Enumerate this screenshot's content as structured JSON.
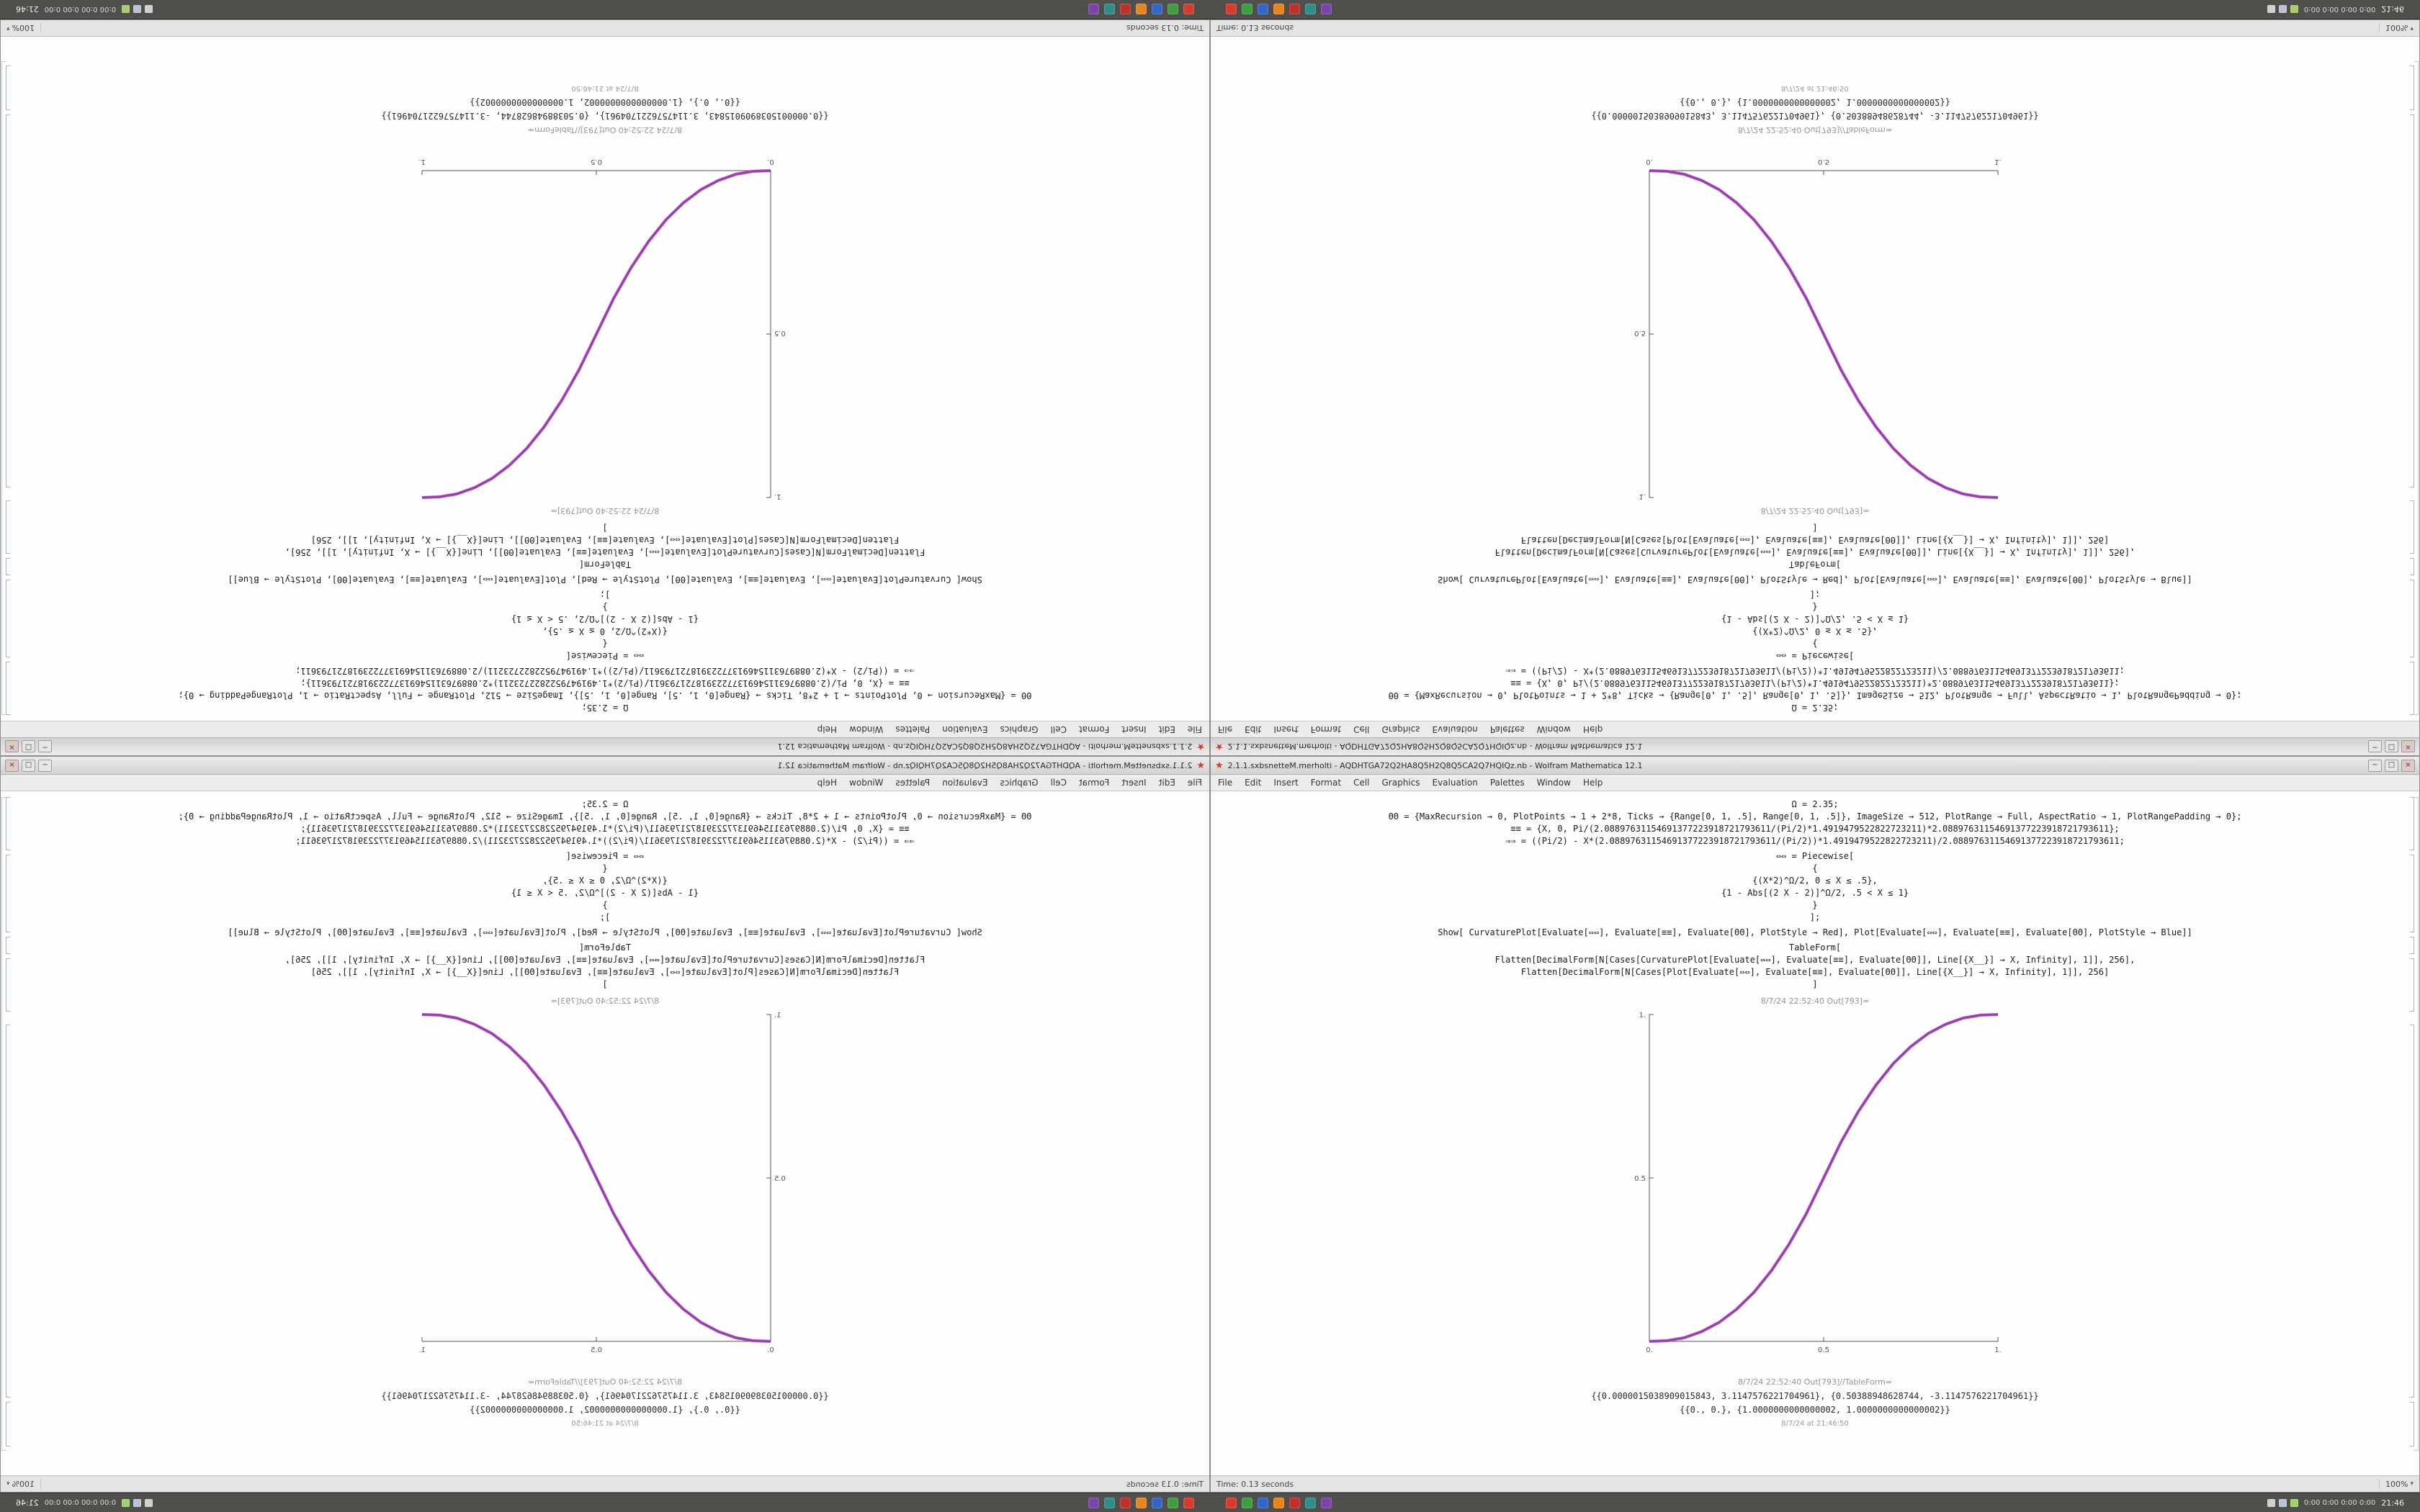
{
  "desktop": {
    "taskbar": {
      "apps": [
        {
          "name": "mathematica-spikey",
          "color": "#d83b2a"
        },
        {
          "name": "green-app",
          "color": "#3d9e3f"
        },
        {
          "name": "blue-app",
          "color": "#2f66c8"
        },
        {
          "name": "orange-app",
          "color": "#e8861e"
        },
        {
          "name": "red-app",
          "color": "#c03028"
        },
        {
          "name": "teal-app",
          "color": "#2e8f8a"
        },
        {
          "name": "purple-app",
          "color": "#7a44aa"
        }
      ],
      "tray_icons": [
        {
          "name": "network-icon",
          "color": "#cfcfcf"
        },
        {
          "name": "volume-icon",
          "color": "#b8c4d4"
        },
        {
          "name": "battery-icon",
          "color": "#9fd06a"
        }
      ],
      "tray_text": "0:00 0:00 0:00 0:00",
      "clock": "21:46"
    }
  },
  "window": {
    "title": "2.1.1.sxbsnetteM.merholti - AQDHTGA72Q2HA8Q5H2Q8Q5CA2Q7HQIQz.nb - Wolfram Mathematica 12.1",
    "controls": {
      "minimize": "−",
      "maximize": "□",
      "close": "×"
    },
    "menu": [
      "File",
      "Edit",
      "Insert",
      "Format",
      "Cell",
      "Graphics",
      "Evaluation",
      "Palettes",
      "Window",
      "Help"
    ],
    "status": {
      "left": "Time: 0.13 seconds",
      "zoom": "100%"
    },
    "cells": {
      "groups": [
        {
          "lines": [
            "Ω = 2.35;",
            "ΘΘ = {MaxRecursion → 0, PlotPoints → 1 + 2*8, Ticks → {Range[0, 1, .5], Range[0, 1, .5]}, ImageSize → 512, PlotRange → Full, AspectRatio → 1, PlotRangePadding → 0};",
            "≡≡ = {X, 0, Pi/(2.08897631154691377223918721793611/(Pi/2)*1.4919479522822723211)*2.08897631154691377223918721793611};",
            "⇒⇒ = ((Pi/2) - X*(2.08897631154691377223918721793611/(Pi/2))*1.4919479522822723211)/2.08897631154691377223918721793611;"
          ]
        },
        {
          "lines": [
            "⇔⇔ = Piecewise[",
            "{",
            "{(X*2)^Ω/2, 0 ≤ X ≤ .5},",
            "{1 - Abs[(2 X - 2)]^Ω/2, .5 < X ≤ 1}",
            "}",
            "];"
          ]
        },
        {
          "lines": [
            "Show[  CurvaturePlot[Evaluate[⇔⇔], Evaluate[≡≡], Evaluate[ΘΘ], PlotStyle → Red],  Plot[Evaluate[⇔⇔], Evaluate[≡≡], Evaluate[ΘΘ], PlotStyle → Blue]]"
          ]
        },
        {
          "lines": [
            "TableForm[",
            "Flatten[DecimalForm[N[Cases[CurvaturePlot[Evaluate[⇔⇔], Evaluate[≡≡], Evaluate[ΘΘ]], Line[{X__}] → X, Infinity], 1]], 256],",
            "Flatten[DecimalForm[N[Cases[Plot[Evaluate[⇔⇔], Evaluate[≡≡], Evaluate[ΘΘ]], Line[{X__}] → X, Infinity], 1]], 256]",
            "]"
          ]
        }
      ],
      "out_label_plot": "8/7/24 22:52:40 Out[793]=",
      "out_label_table": "8/7/24 22:52:40 Out[793]//TableForm=",
      "outputs": [
        "{{0.0000015038909015843, 3.1147576221704961}, {0.50388948628744, -3.1147576221704961}}",
        "{{0., 0.}, {1.0000000000000002, 1.0000000000000002}}"
      ],
      "footer_timestamp": "8/7/24 at 21:46:50"
    }
  },
  "chart_data": {
    "type": "line",
    "title": "",
    "xlabel": "",
    "ylabel": "",
    "xlim": [
      0,
      1
    ],
    "ylim": [
      0,
      1
    ],
    "xticks": [
      0,
      0.5,
      1
    ],
    "yticks": [
      0,
      0.5,
      1
    ],
    "xtick_labels": [
      "0.",
      "0.5",
      "1."
    ],
    "ytick_labels": [
      "0.",
      "0.5",
      "1."
    ],
    "grid": false,
    "legend": false,
    "x": [
      0,
      0.05,
      0.1,
      0.15,
      0.2,
      0.25,
      0.3,
      0.35,
      0.4,
      0.45,
      0.5,
      0.55,
      0.6,
      0.65,
      0.7,
      0.75,
      0.8,
      0.85,
      0.9,
      0.95,
      1
    ],
    "y": [
      0,
      0.002,
      0.011,
      0.03,
      0.058,
      0.098,
      0.15,
      0.216,
      0.296,
      0.39,
      0.5,
      0.61,
      0.704,
      0.784,
      0.85,
      0.902,
      0.942,
      0.97,
      0.989,
      0.998,
      1
    ],
    "series": [
      {
        "name": "CurvaturePlot",
        "plot_style": "Red",
        "color": "#c93a9a"
      },
      {
        "name": "Plot",
        "plot_style": "Blue",
        "color": "#7b43c9"
      }
    ]
  },
  "quadrants": [
    {
      "position": "top-left",
      "orientation": "rotated-180"
    },
    {
      "position": "top-right",
      "orientation": "flipped-vertical"
    },
    {
      "position": "bottom-left",
      "orientation": "flipped-horizontal"
    },
    {
      "position": "bottom-right",
      "orientation": "normal"
    }
  ]
}
